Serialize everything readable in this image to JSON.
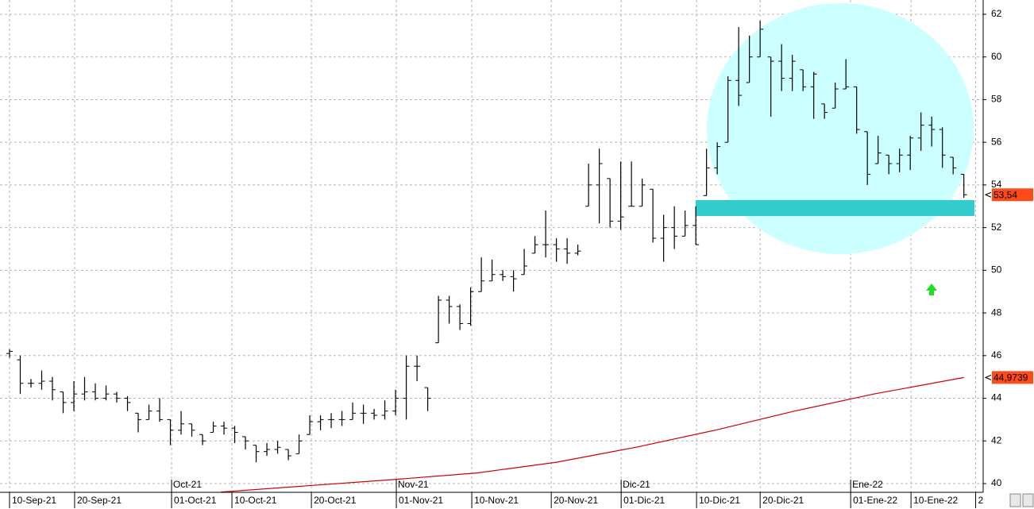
{
  "chart_data": {
    "type": "ohlc",
    "ylim": [
      39.59,
      62.67
    ],
    "yticks": [
      40,
      42,
      44,
      46,
      48,
      50,
      52,
      54,
      56,
      58,
      60,
      62
    ],
    "xlim": [
      -0.889,
      90.8
    ],
    "xticks": [
      {
        "value": 0,
        "label": "10-Sep-21"
      },
      {
        "value": 6.07,
        "label": "20-Sep-21"
      },
      {
        "value": 15.11,
        "label": "01-Oct-21"
      },
      {
        "value": 20.74,
        "label": "10-Oct-21"
      },
      {
        "value": 28.15,
        "label": "20-Oct-21"
      },
      {
        "value": 36.07,
        "label": "01-Nov-21"
      },
      {
        "value": 43.11,
        "label": "10-Nov-21"
      },
      {
        "value": 50.52,
        "label": "20-Nov-21"
      },
      {
        "value": 57.04,
        "label": "01-Dic-21"
      },
      {
        "value": 64.07,
        "label": "10-Dic-21"
      },
      {
        "value": 70.0,
        "label": "20-Dic-21"
      },
      {
        "value": 78.44,
        "label": "01-Ene-22"
      },
      {
        "value": 84.07,
        "label": "10-Ene-22"
      },
      {
        "value": 90.1,
        "label": "2"
      }
    ],
    "month_ticks": [
      {
        "value": 15.11,
        "label": "Oct-21"
      },
      {
        "value": 36.07,
        "label": "Nov-21"
      },
      {
        "value": 57.04,
        "label": "Dic-21"
      },
      {
        "value": 78.44,
        "label": "Ene-22"
      }
    ],
    "grid": true,
    "ohlc": {
      "color": "#000000",
      "open": [
        46.1,
        45.8,
        44.7,
        44.7,
        44.8,
        44.3,
        43.8,
        44.2,
        44.3,
        44.0,
        44.2,
        44.0,
        43.3,
        43.0,
        43.4,
        43.0,
        42.5,
        42.8,
        42.3,
        42.4,
        42.7,
        42.6,
        42.2,
        41.8,
        41.5,
        41.6,
        41.6,
        41.4,
        42.3,
        42.9,
        43.0,
        43.0,
        43.0,
        43.3,
        43.3,
        43.2,
        43.4,
        44.0,
        45.5,
        44.5,
        46.6,
        48.6,
        48.3,
        47.5,
        49.0,
        49.5,
        49.8,
        49.7,
        49.8,
        50.8,
        51.2,
        51.2,
        51.0,
        50.8,
        53.0,
        54.0,
        54.3,
        52.3,
        53.0,
        53.0,
        53.8,
        51.5,
        52.0,
        51.6,
        52.1,
        53.5,
        54.8,
        56.0,
        58.9,
        58.8,
        60.0,
        60.0,
        59.8,
        59.0,
        59.4,
        58.6,
        57.8,
        57.6,
        58.5,
        58.6,
        56.5,
        55.0,
        55.4,
        55.0,
        55.4,
        56.2,
        56.8,
        56.6,
        55.3,
        54.5
      ],
      "high": [
        46.3,
        46.0,
        44.9,
        45.3,
        45.0,
        44.3,
        44.8,
        45.0,
        44.7,
        44.6,
        44.3,
        44.1,
        43.3,
        43.7,
        44.0,
        43.0,
        43.4,
        42.8,
        42.3,
        42.9,
        42.9,
        42.7,
        42.2,
        41.8,
        41.9,
        42.0,
        41.6,
        42.3,
        43.2,
        43.2,
        43.3,
        43.4,
        43.8,
        43.7,
        43.5,
        43.9,
        44.4,
        46.0,
        46.0,
        44.5,
        48.8,
        48.8,
        48.4,
        49.2,
        50.6,
        50.5,
        50.0,
        50.0,
        51.0,
        51.6,
        52.8,
        51.5,
        51.5,
        51.2,
        55.0,
        55.7,
        54.3,
        55.1,
        55.1,
        54.3,
        53.8,
        52.6,
        53.0,
        52.8,
        53.0,
        55.7,
        56.0,
        59.1,
        61.4,
        61.0,
        61.7,
        60.0,
        60.6,
        60.1,
        59.4,
        59.3,
        57.8,
        58.8,
        59.9,
        58.6,
        56.5,
        56.3,
        55.4,
        55.7,
        56.3,
        57.4,
        57.2,
        56.7,
        55.3,
        54.5
      ],
      "low": [
        45.9,
        44.2,
        44.5,
        44.4,
        43.9,
        43.3,
        43.4,
        43.9,
        43.9,
        43.9,
        43.8,
        43.4,
        42.4,
        43.0,
        42.9,
        41.8,
        42.3,
        42.2,
        41.8,
        42.4,
        42.3,
        41.9,
        41.6,
        41.0,
        41.3,
        41.4,
        41.1,
        41.4,
        42.3,
        42.5,
        42.6,
        42.7,
        43.0,
        42.8,
        43.0,
        43.0,
        43.2,
        43.0,
        44.8,
        43.4,
        46.6,
        47.5,
        47.2,
        47.4,
        49.0,
        49.5,
        49.5,
        49.0,
        49.8,
        50.8,
        50.6,
        50.4,
        50.3,
        50.7,
        53.0,
        52.2,
        52.0,
        51.9,
        53.0,
        53.0,
        51.3,
        50.4,
        51.0,
        51.6,
        51.2,
        53.5,
        54.5,
        56.0,
        57.7,
        58.8,
        60.0,
        57.2,
        58.4,
        58.4,
        58.4,
        57.1,
        57.1,
        57.6,
        58.5,
        56.4,
        54.0,
        55.0,
        54.5,
        54.6,
        54.7,
        55.6,
        55.8,
        54.8,
        54.5,
        53.4
      ],
      "close": [
        46.2,
        44.7,
        44.7,
        44.8,
        44.4,
        43.8,
        44.2,
        44.3,
        44.0,
        44.2,
        44.0,
        43.8,
        43.0,
        43.4,
        43.0,
        42.5,
        42.8,
        42.5,
        42.0,
        42.7,
        42.6,
        42.4,
        42.0,
        41.5,
        41.6,
        41.7,
        41.3,
        42.0,
        42.9,
        43.0,
        43.0,
        43.0,
        43.3,
        43.3,
        43.2,
        43.4,
        44.0,
        45.5,
        45.5,
        44.0,
        48.6,
        48.3,
        47.5,
        49.0,
        49.5,
        49.8,
        49.7,
        49.6,
        50.2,
        51.2,
        51.2,
        51.0,
        50.8,
        50.9,
        54.0,
        55.0,
        52.3,
        52.5,
        53.0,
        54.0,
        51.5,
        52.0,
        51.6,
        52.1,
        51.2,
        54.8,
        55.8,
        58.9,
        58.2,
        60.0,
        61.3,
        59.8,
        59.0,
        59.8,
        58.6,
        59.2,
        57.4,
        58.5,
        58.6,
        56.6,
        54.5,
        55.5,
        55.0,
        55.4,
        56.2,
        56.8,
        56.6,
        55.4,
        54.8,
        53.54
      ]
    },
    "moving_average": {
      "color": "#cc0000",
      "x": [
        19.7,
        36.1,
        43.6,
        51,
        58.4,
        65.8,
        73.2,
        80.6,
        89
      ],
      "values": [
        39.6,
        40.2,
        40.5,
        41.0,
        41.7,
        42.5,
        43.4,
        44.2,
        44.9739
      ]
    },
    "last_price": {
      "value": 53.54,
      "label": "53,54"
    },
    "ma_last": {
      "value": 44.9739,
      "label": "44,9739"
    }
  }
}
